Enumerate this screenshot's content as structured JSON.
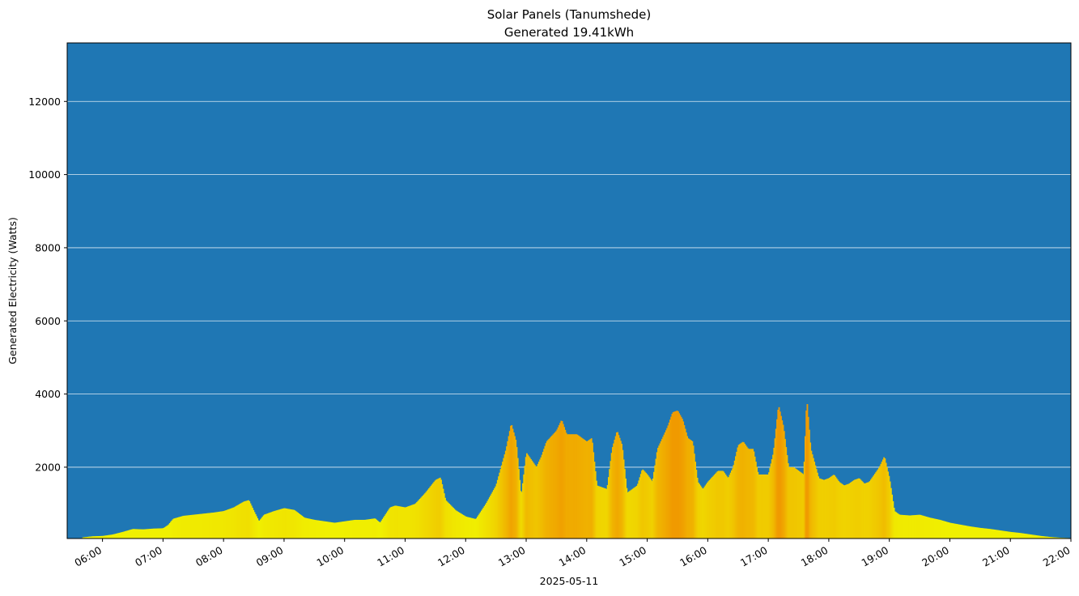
{
  "chart_data": {
    "type": "bar",
    "title": "Solar Panels (Tanumshede)",
    "subtitle": "Generated 19.41kWh",
    "xlabel": "2025-05-11",
    "ylabel": "Generated Electricity (Watts)",
    "xlim": [
      "05:25",
      "22:00"
    ],
    "ylim": [
      50,
      13600
    ],
    "yticks": [
      2000,
      4000,
      6000,
      8000,
      10000,
      12000
    ],
    "xticks": [
      "06:00",
      "07:00",
      "08:00",
      "09:00",
      "10:00",
      "11:00",
      "12:00",
      "13:00",
      "14:00",
      "15:00",
      "16:00",
      "17:00",
      "18:00",
      "19:00",
      "20:00",
      "21:00",
      "22:00"
    ],
    "grid": "y",
    "colors": {
      "plot_background": "#1f77b4",
      "grid": "#ffffff",
      "low": "#f0f000",
      "high": "#f09a00"
    },
    "points": [
      [
        "05:40",
        80
      ],
      [
        "05:50",
        110
      ],
      [
        "06:00",
        120
      ],
      [
        "06:10",
        160
      ],
      [
        "06:20",
        230
      ],
      [
        "06:30",
        310
      ],
      [
        "06:40",
        300
      ],
      [
        "06:50",
        320
      ],
      [
        "07:00",
        330
      ],
      [
        "07:05",
        420
      ],
      [
        "07:10",
        590
      ],
      [
        "07:20",
        670
      ],
      [
        "07:30",
        700
      ],
      [
        "07:40",
        730
      ],
      [
        "07:50",
        760
      ],
      [
        "08:00",
        800
      ],
      [
        "08:10",
        900
      ],
      [
        "08:20",
        1060
      ],
      [
        "08:25",
        1100
      ],
      [
        "08:30",
        800
      ],
      [
        "08:35",
        520
      ],
      [
        "08:40",
        700
      ],
      [
        "08:50",
        800
      ],
      [
        "09:00",
        880
      ],
      [
        "09:10",
        830
      ],
      [
        "09:20",
        620
      ],
      [
        "09:30",
        560
      ],
      [
        "09:40",
        520
      ],
      [
        "09:50",
        480
      ],
      [
        "10:00",
        520
      ],
      [
        "10:10",
        560
      ],
      [
        "10:20",
        560
      ],
      [
        "10:30",
        600
      ],
      [
        "10:35",
        480
      ],
      [
        "10:45",
        900
      ],
      [
        "10:50",
        950
      ],
      [
        "11:00",
        900
      ],
      [
        "11:10",
        1000
      ],
      [
        "11:20",
        1300
      ],
      [
        "11:30",
        1650
      ],
      [
        "11:35",
        1720
      ],
      [
        "11:40",
        1100
      ],
      [
        "11:50",
        820
      ],
      [
        "12:00",
        650
      ],
      [
        "12:10",
        580
      ],
      [
        "12:20",
        1000
      ],
      [
        "12:30",
        1500
      ],
      [
        "12:40",
        2500
      ],
      [
        "12:45",
        3200
      ],
      [
        "12:50",
        2700
      ],
      [
        "12:55",
        1200
      ],
      [
        "13:00",
        2400
      ],
      [
        "13:05",
        2200
      ],
      [
        "13:10",
        2000
      ],
      [
        "13:15",
        2300
      ],
      [
        "13:20",
        2700
      ],
      [
        "13:30",
        3000
      ],
      [
        "13:35",
        3300
      ],
      [
        "13:40",
        2900
      ],
      [
        "13:50",
        2900
      ],
      [
        "14:00",
        2700
      ],
      [
        "14:05",
        2800
      ],
      [
        "14:10",
        1500
      ],
      [
        "14:20",
        1400
      ],
      [
        "14:25",
        2500
      ],
      [
        "14:30",
        3000
      ],
      [
        "14:35",
        2600
      ],
      [
        "14:40",
        1300
      ],
      [
        "14:50",
        1500
      ],
      [
        "14:55",
        1950
      ],
      [
        "15:00",
        1800
      ],
      [
        "15:05",
        1600
      ],
      [
        "15:10",
        2500
      ],
      [
        "15:20",
        3100
      ],
      [
        "15:25",
        3500
      ],
      [
        "15:30",
        3550
      ],
      [
        "15:35",
        3300
      ],
      [
        "15:40",
        2800
      ],
      [
        "15:45",
        2700
      ],
      [
        "15:50",
        1600
      ],
      [
        "15:55",
        1400
      ],
      [
        "16:00",
        1600
      ],
      [
        "16:10",
        1900
      ],
      [
        "16:15",
        1900
      ],
      [
        "16:20",
        1700
      ],
      [
        "16:25",
        2000
      ],
      [
        "16:30",
        2600
      ],
      [
        "16:35",
        2700
      ],
      [
        "16:40",
        2500
      ],
      [
        "16:45",
        2500
      ],
      [
        "16:50",
        1800
      ],
      [
        "17:00",
        1800
      ],
      [
        "17:05",
        2400
      ],
      [
        "17:10",
        3700
      ],
      [
        "17:15",
        3100
      ],
      [
        "17:20",
        2000
      ],
      [
        "17:25",
        2000
      ],
      [
        "17:30",
        1900
      ],
      [
        "17:35",
        1800
      ],
      [
        "17:38",
        3900
      ],
      [
        "17:42",
        2500
      ],
      [
        "17:50",
        1700
      ],
      [
        "17:55",
        1650
      ],
      [
        "18:00",
        1700
      ],
      [
        "18:05",
        1800
      ],
      [
        "18:10",
        1600
      ],
      [
        "18:15",
        1500
      ],
      [
        "18:20",
        1550
      ],
      [
        "18:25",
        1650
      ],
      [
        "18:30",
        1700
      ],
      [
        "18:35",
        1550
      ],
      [
        "18:40",
        1600
      ],
      [
        "18:45",
        1800
      ],
      [
        "18:50",
        2000
      ],
      [
        "18:55",
        2300
      ],
      [
        "19:00",
        1700
      ],
      [
        "19:05",
        800
      ],
      [
        "19:10",
        700
      ],
      [
        "19:20",
        680
      ],
      [
        "19:30",
        700
      ],
      [
        "19:40",
        620
      ],
      [
        "19:50",
        560
      ],
      [
        "20:00",
        480
      ],
      [
        "20:10",
        430
      ],
      [
        "20:20",
        380
      ],
      [
        "20:30",
        340
      ],
      [
        "20:40",
        310
      ],
      [
        "20:50",
        270
      ],
      [
        "21:00",
        230
      ],
      [
        "21:10",
        200
      ],
      [
        "21:20",
        160
      ],
      [
        "21:30",
        120
      ],
      [
        "21:40",
        90
      ],
      [
        "21:50",
        70
      ],
      [
        "22:00",
        60
      ]
    ]
  }
}
